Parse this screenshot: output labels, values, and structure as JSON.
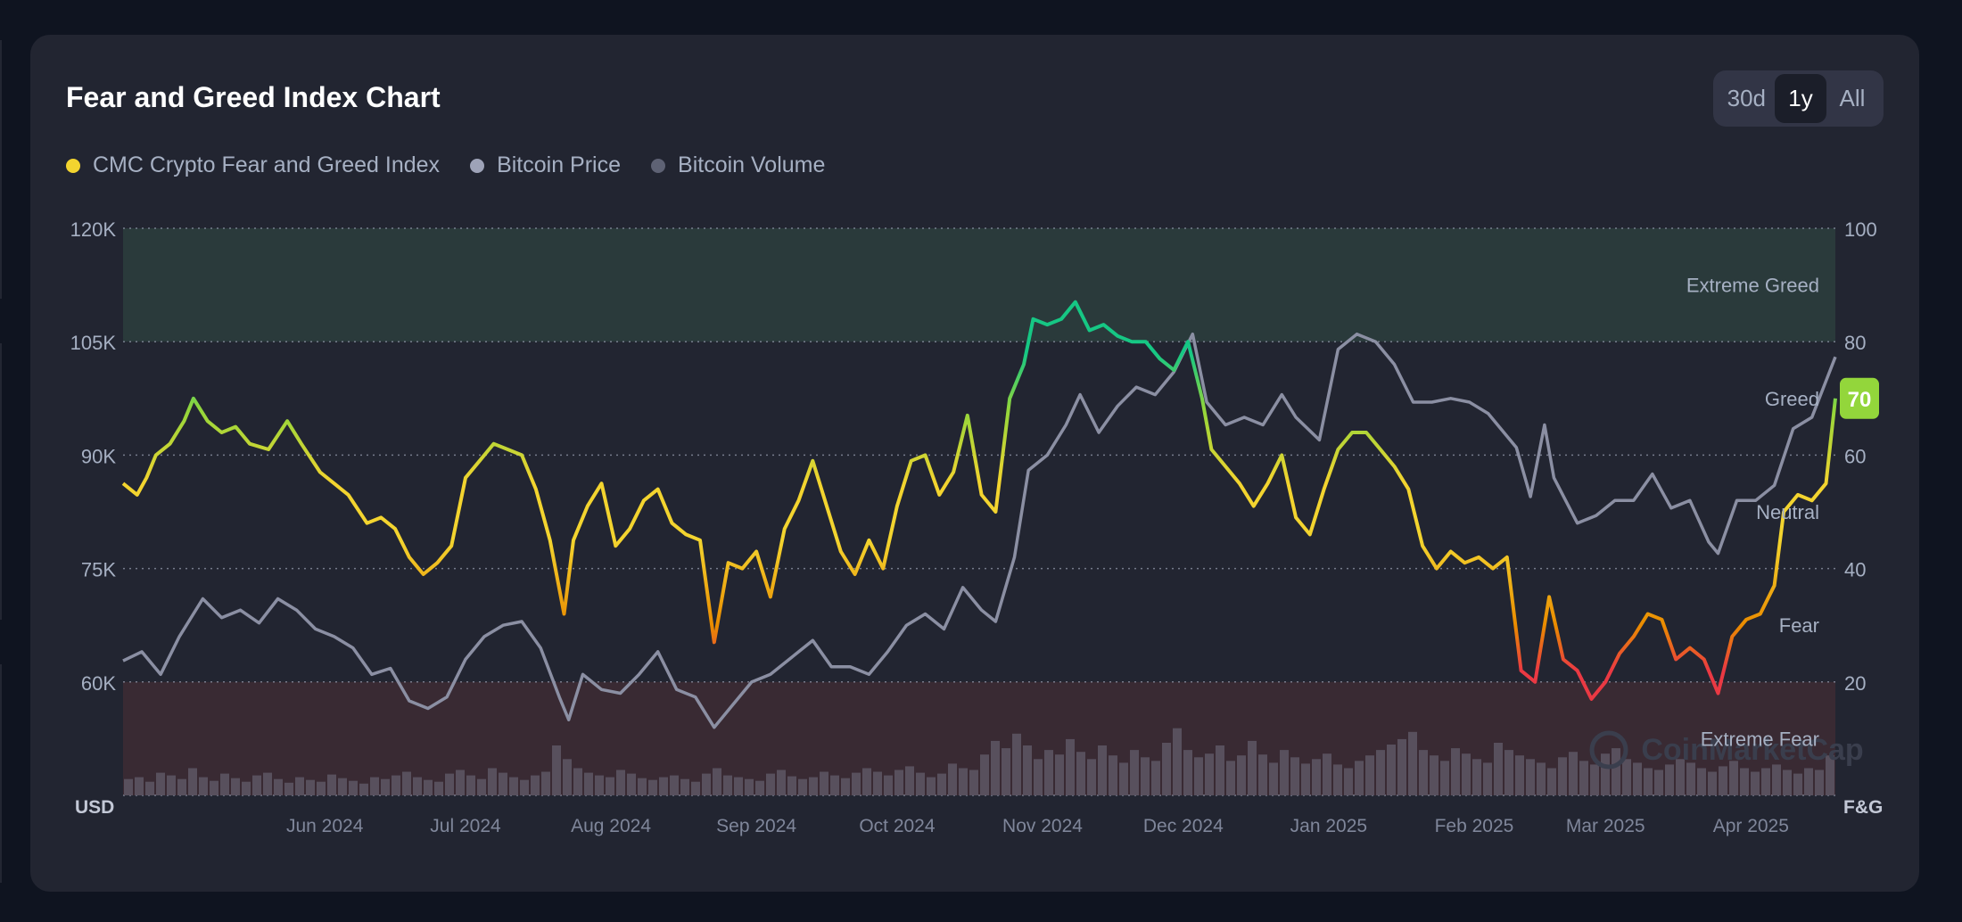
{
  "title": "Fear and Greed Index Chart",
  "range_options": [
    {
      "label": "30d",
      "active": false
    },
    {
      "label": "1y",
      "active": true
    },
    {
      "label": "All",
      "active": false
    }
  ],
  "legend": [
    {
      "label": "CMC Crypto Fear and Greed Index",
      "color": "#f3d42f"
    },
    {
      "label": "Bitcoin Price",
      "color": "#9ea3b8"
    },
    {
      "label": "Bitcoin Volume",
      "color": "#5e6274"
    }
  ],
  "watermark": "CoinMarketCap",
  "chart_data": {
    "type": "line",
    "x_axis": {
      "ticks": [
        "Jun 2024",
        "Jul 2024",
        "Aug 2024",
        "Sep 2024",
        "Oct 2024",
        "Nov 2024",
        "Dec 2024",
        "Jan 2025",
        "Feb 2025",
        "Mar 2025",
        "Apr 2025"
      ],
      "start": "2024-05-03",
      "end": "2025-05-03"
    },
    "y_left": {
      "label": "USD",
      "ylim": [
        45000,
        120000
      ],
      "ticks": [
        "120K",
        "105K",
        "90K",
        "75K",
        "60K"
      ],
      "tick_values": [
        120000,
        105000,
        90000,
        75000,
        60000
      ]
    },
    "y_right": {
      "label": "F&G",
      "ylim": [
        0,
        100
      ],
      "ticks": [
        "100",
        "80",
        "60",
        "40",
        "20"
      ],
      "tick_values": [
        100,
        80,
        60,
        40,
        20
      ]
    },
    "zones": [
      {
        "label": "Extreme Greed",
        "from": 80,
        "to": 100,
        "color": "#2a3a3b"
      },
      {
        "label": "Greed",
        "from": 60,
        "to": 80
      },
      {
        "label": "Neutral",
        "from": 40,
        "to": 60
      },
      {
        "label": "Fear",
        "from": 20,
        "to": 40
      },
      {
        "label": "Extreme Fear",
        "from": 0,
        "to": 20,
        "color": "#392a33"
      }
    ],
    "current_value": {
      "label": "70",
      "value": 70,
      "color": "#93d63b"
    },
    "grid": true,
    "series": [
      {
        "name": "CMC Crypto Fear and Greed Index",
        "axis": "right",
        "gradient": true,
        "points": [
          [
            "2024-05-03",
            55
          ],
          [
            "2024-05-06",
            53
          ],
          [
            "2024-05-08",
            56
          ],
          [
            "2024-05-10",
            60
          ],
          [
            "2024-05-13",
            62
          ],
          [
            "2024-05-16",
            66
          ],
          [
            "2024-05-18",
            70
          ],
          [
            "2024-05-21",
            66
          ],
          [
            "2024-05-24",
            64
          ],
          [
            "2024-05-27",
            65
          ],
          [
            "2024-05-30",
            62
          ],
          [
            "2024-06-03",
            61
          ],
          [
            "2024-06-07",
            66
          ],
          [
            "2024-06-10",
            62
          ],
          [
            "2024-06-14",
            57
          ],
          [
            "2024-06-17",
            55
          ],
          [
            "2024-06-20",
            53
          ],
          [
            "2024-06-24",
            48
          ],
          [
            "2024-06-27",
            49
          ],
          [
            "2024-06-30",
            47
          ],
          [
            "2024-07-03",
            42
          ],
          [
            "2024-07-06",
            39
          ],
          [
            "2024-07-09",
            41
          ],
          [
            "2024-07-12",
            44
          ],
          [
            "2024-07-15",
            56
          ],
          [
            "2024-07-18",
            59
          ],
          [
            "2024-07-21",
            62
          ],
          [
            "2024-07-24",
            61
          ],
          [
            "2024-07-27",
            60
          ],
          [
            "2024-07-30",
            54
          ],
          [
            "2024-08-02",
            45
          ],
          [
            "2024-08-05",
            32
          ],
          [
            "2024-08-07",
            45
          ],
          [
            "2024-08-10",
            51
          ],
          [
            "2024-08-13",
            55
          ],
          [
            "2024-08-16",
            44
          ],
          [
            "2024-08-19",
            47
          ],
          [
            "2024-08-22",
            52
          ],
          [
            "2024-08-25",
            54
          ],
          [
            "2024-08-28",
            48
          ],
          [
            "2024-08-31",
            46
          ],
          [
            "2024-09-03",
            45
          ],
          [
            "2024-09-06",
            27
          ],
          [
            "2024-09-09",
            41
          ],
          [
            "2024-09-12",
            40
          ],
          [
            "2024-09-15",
            43
          ],
          [
            "2024-09-18",
            35
          ],
          [
            "2024-09-21",
            47
          ],
          [
            "2024-09-24",
            52
          ],
          [
            "2024-09-27",
            59
          ],
          [
            "2024-09-30",
            51
          ],
          [
            "2024-10-03",
            43
          ],
          [
            "2024-10-06",
            39
          ],
          [
            "2024-10-09",
            45
          ],
          [
            "2024-10-12",
            40
          ],
          [
            "2024-10-15",
            51
          ],
          [
            "2024-10-18",
            59
          ],
          [
            "2024-10-21",
            60
          ],
          [
            "2024-10-24",
            53
          ],
          [
            "2024-10-27",
            57
          ],
          [
            "2024-10-30",
            67
          ],
          [
            "2024-11-02",
            53
          ],
          [
            "2024-11-05",
            50
          ],
          [
            "2024-11-08",
            70
          ],
          [
            "2024-11-11",
            76
          ],
          [
            "2024-11-13",
            84
          ],
          [
            "2024-11-16",
            83
          ],
          [
            "2024-11-19",
            84
          ],
          [
            "2024-11-22",
            87
          ],
          [
            "2024-11-25",
            82
          ],
          [
            "2024-11-28",
            83
          ],
          [
            "2024-12-01",
            81
          ],
          [
            "2024-12-04",
            80
          ],
          [
            "2024-12-07",
            80
          ],
          [
            "2024-12-10",
            77
          ],
          [
            "2024-12-13",
            75
          ],
          [
            "2024-12-16",
            80
          ],
          [
            "2024-12-19",
            70
          ],
          [
            "2024-12-21",
            61
          ],
          [
            "2024-12-24",
            58
          ],
          [
            "2024-12-27",
            55
          ],
          [
            "2024-12-30",
            51
          ],
          [
            "2025-01-02",
            55
          ],
          [
            "2025-01-05",
            60
          ],
          [
            "2025-01-08",
            49
          ],
          [
            "2025-01-11",
            46
          ],
          [
            "2025-01-14",
            54
          ],
          [
            "2025-01-17",
            61
          ],
          [
            "2025-01-20",
            64
          ],
          [
            "2025-01-23",
            64
          ],
          [
            "2025-01-26",
            61
          ],
          [
            "2025-01-29",
            58
          ],
          [
            "2025-02-01",
            54
          ],
          [
            "2025-02-04",
            44
          ],
          [
            "2025-02-07",
            40
          ],
          [
            "2025-02-10",
            43
          ],
          [
            "2025-02-13",
            41
          ],
          [
            "2025-02-16",
            42
          ],
          [
            "2025-02-19",
            40
          ],
          [
            "2025-02-22",
            42
          ],
          [
            "2025-02-25",
            22
          ],
          [
            "2025-02-28",
            20
          ],
          [
            "2025-03-03",
            35
          ],
          [
            "2025-03-06",
            24
          ],
          [
            "2025-03-09",
            22
          ],
          [
            "2025-03-12",
            17
          ],
          [
            "2025-03-15",
            20
          ],
          [
            "2025-03-18",
            25
          ],
          [
            "2025-03-21",
            28
          ],
          [
            "2025-03-24",
            32
          ],
          [
            "2025-03-27",
            31
          ],
          [
            "2025-03-30",
            24
          ],
          [
            "2025-04-02",
            26
          ],
          [
            "2025-04-05",
            24
          ],
          [
            "2025-04-08",
            18
          ],
          [
            "2025-04-11",
            28
          ],
          [
            "2025-04-14",
            31
          ],
          [
            "2025-04-17",
            32
          ],
          [
            "2025-04-20",
            37
          ],
          [
            "2025-04-22",
            50
          ],
          [
            "2025-04-25",
            53
          ],
          [
            "2025-04-28",
            52
          ],
          [
            "2025-05-01",
            55
          ],
          [
            "2025-05-03",
            70
          ]
        ]
      },
      {
        "name": "Bitcoin Price",
        "axis": "left",
        "points": [
          [
            "2024-05-03",
            62800
          ],
          [
            "2024-05-07",
            64000
          ],
          [
            "2024-05-11",
            61000
          ],
          [
            "2024-05-15",
            66000
          ],
          [
            "2024-05-20",
            71000
          ],
          [
            "2024-05-24",
            68500
          ],
          [
            "2024-05-28",
            69500
          ],
          [
            "2024-06-01",
            67800
          ],
          [
            "2024-06-05",
            71000
          ],
          [
            "2024-06-09",
            69500
          ],
          [
            "2024-06-13",
            67000
          ],
          [
            "2024-06-17",
            66000
          ],
          [
            "2024-06-21",
            64500
          ],
          [
            "2024-06-25",
            61000
          ],
          [
            "2024-06-29",
            61800
          ],
          [
            "2024-07-03",
            57500
          ],
          [
            "2024-07-07",
            56500
          ],
          [
            "2024-07-11",
            58000
          ],
          [
            "2024-07-15",
            63000
          ],
          [
            "2024-07-19",
            66000
          ],
          [
            "2024-07-23",
            67500
          ],
          [
            "2024-07-27",
            68000
          ],
          [
            "2024-07-31",
            64500
          ],
          [
            "2024-08-04",
            58000
          ],
          [
            "2024-08-06",
            55000
          ],
          [
            "2024-08-09",
            61000
          ],
          [
            "2024-08-13",
            59000
          ],
          [
            "2024-08-17",
            58500
          ],
          [
            "2024-08-21",
            61000
          ],
          [
            "2024-08-25",
            64000
          ],
          [
            "2024-08-29",
            59000
          ],
          [
            "2024-09-02",
            58000
          ],
          [
            "2024-09-06",
            54000
          ],
          [
            "2024-09-10",
            57000
          ],
          [
            "2024-09-14",
            60000
          ],
          [
            "2024-09-18",
            61000
          ],
          [
            "2024-09-22",
            63000
          ],
          [
            "2024-09-27",
            65500
          ],
          [
            "2024-10-01",
            62000
          ],
          [
            "2024-10-05",
            62000
          ],
          [
            "2024-10-09",
            61000
          ],
          [
            "2024-10-13",
            64000
          ],
          [
            "2024-10-17",
            67500
          ],
          [
            "2024-10-21",
            69000
          ],
          [
            "2024-10-25",
            67000
          ],
          [
            "2024-10-29",
            72500
          ],
          [
            "2024-11-02",
            69500
          ],
          [
            "2024-11-05",
            68000
          ],
          [
            "2024-11-09",
            76500
          ],
          [
            "2024-11-12",
            88000
          ],
          [
            "2024-11-16",
            90000
          ],
          [
            "2024-11-20",
            94000
          ],
          [
            "2024-11-23",
            98000
          ],
          [
            "2024-11-27",
            93000
          ],
          [
            "2024-12-01",
            96500
          ],
          [
            "2024-12-05",
            99000
          ],
          [
            "2024-12-09",
            98000
          ],
          [
            "2024-12-13",
            101000
          ],
          [
            "2024-12-17",
            106000
          ],
          [
            "2024-12-20",
            97000
          ],
          [
            "2024-12-24",
            94000
          ],
          [
            "2024-12-28",
            95000
          ],
          [
            "2025-01-01",
            94000
          ],
          [
            "2025-01-05",
            98000
          ],
          [
            "2025-01-08",
            95000
          ],
          [
            "2025-01-13",
            92000
          ],
          [
            "2025-01-17",
            104000
          ],
          [
            "2025-01-21",
            106000
          ],
          [
            "2025-01-25",
            105000
          ],
          [
            "2025-01-29",
            102000
          ],
          [
            "2025-02-02",
            97000
          ],
          [
            "2025-02-06",
            97000
          ],
          [
            "2025-02-10",
            97500
          ],
          [
            "2025-02-14",
            97000
          ],
          [
            "2025-02-18",
            95500
          ],
          [
            "2025-02-24",
            91000
          ],
          [
            "2025-02-27",
            84500
          ],
          [
            "2025-03-02",
            94000
          ],
          [
            "2025-03-04",
            87000
          ],
          [
            "2025-03-09",
            81000
          ],
          [
            "2025-03-13",
            82000
          ],
          [
            "2025-03-17",
            84000
          ],
          [
            "2025-03-21",
            84000
          ],
          [
            "2025-03-25",
            87500
          ],
          [
            "2025-03-29",
            83000
          ],
          [
            "2025-04-02",
            84000
          ],
          [
            "2025-04-06",
            78500
          ],
          [
            "2025-04-08",
            77000
          ],
          [
            "2025-04-12",
            84000
          ],
          [
            "2025-04-16",
            84000
          ],
          [
            "2025-04-20",
            86000
          ],
          [
            "2025-04-24",
            93500
          ],
          [
            "2025-04-28",
            95000
          ],
          [
            "2025-05-03",
            103000
          ]
        ]
      },
      {
        "name": "Bitcoin Volume",
        "axis": "volume",
        "relative_heights": [
          0.18,
          0.2,
          0.15,
          0.25,
          0.22,
          0.18,
          0.3,
          0.2,
          0.16,
          0.24,
          0.19,
          0.15,
          0.22,
          0.25,
          0.18,
          0.14,
          0.2,
          0.17,
          0.15,
          0.23,
          0.19,
          0.16,
          0.13,
          0.2,
          0.18,
          0.22,
          0.26,
          0.2,
          0.17,
          0.15,
          0.24,
          0.28,
          0.22,
          0.18,
          0.3,
          0.25,
          0.2,
          0.17,
          0.22,
          0.26,
          0.55,
          0.4,
          0.3,
          0.25,
          0.22,
          0.2,
          0.28,
          0.24,
          0.19,
          0.17,
          0.2,
          0.22,
          0.18,
          0.15,
          0.24,
          0.3,
          0.22,
          0.2,
          0.18,
          0.16,
          0.24,
          0.28,
          0.21,
          0.18,
          0.2,
          0.26,
          0.22,
          0.19,
          0.25,
          0.3,
          0.26,
          0.22,
          0.28,
          0.32,
          0.25,
          0.2,
          0.24,
          0.35,
          0.3,
          0.28,
          0.45,
          0.6,
          0.52,
          0.68,
          0.55,
          0.4,
          0.5,
          0.45,
          0.62,
          0.48,
          0.4,
          0.55,
          0.44,
          0.36,
          0.5,
          0.42,
          0.38,
          0.58,
          0.74,
          0.5,
          0.42,
          0.46,
          0.55,
          0.38,
          0.44,
          0.6,
          0.45,
          0.36,
          0.5,
          0.42,
          0.35,
          0.4,
          0.46,
          0.34,
          0.3,
          0.38,
          0.44,
          0.5,
          0.56,
          0.62,
          0.7,
          0.5,
          0.44,
          0.38,
          0.52,
          0.46,
          0.4,
          0.36,
          0.58,
          0.5,
          0.44,
          0.4,
          0.36,
          0.3,
          0.42,
          0.48,
          0.38,
          0.34,
          0.46,
          0.52,
          0.4,
          0.36,
          0.3,
          0.28,
          0.34,
          0.4,
          0.36,
          0.3,
          0.26,
          0.32,
          0.38,
          0.3,
          0.26,
          0.3,
          0.34,
          0.28,
          0.24,
          0.3,
          0.28,
          0.44
        ]
      }
    ]
  }
}
